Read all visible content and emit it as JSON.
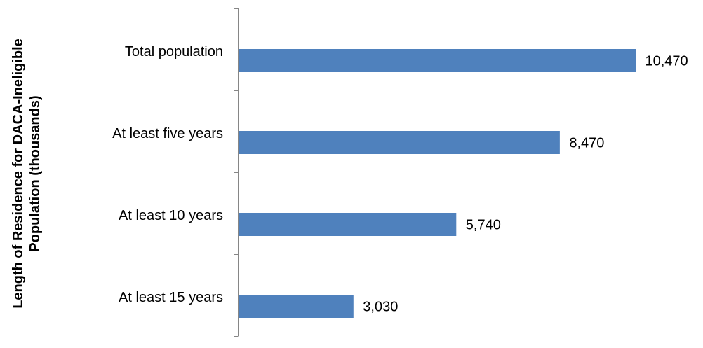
{
  "chart_data": {
    "type": "bar",
    "orientation": "horizontal",
    "title": "",
    "ylabel_lines": [
      "Length of Residence for DACA-Ineligible",
      "Population (thousands)"
    ],
    "xlabel": "",
    "categories": [
      "Total population",
      "At least five years",
      "At least 10 years",
      "At least 15 years"
    ],
    "values": [
      10470,
      8470,
      5740,
      3030
    ],
    "value_labels": [
      "10,470",
      "8,470",
      "5,740",
      "3,030"
    ],
    "xlim": [
      0,
      10470
    ],
    "bar_color": "#4F81BD",
    "grid": false,
    "legend": "none"
  }
}
